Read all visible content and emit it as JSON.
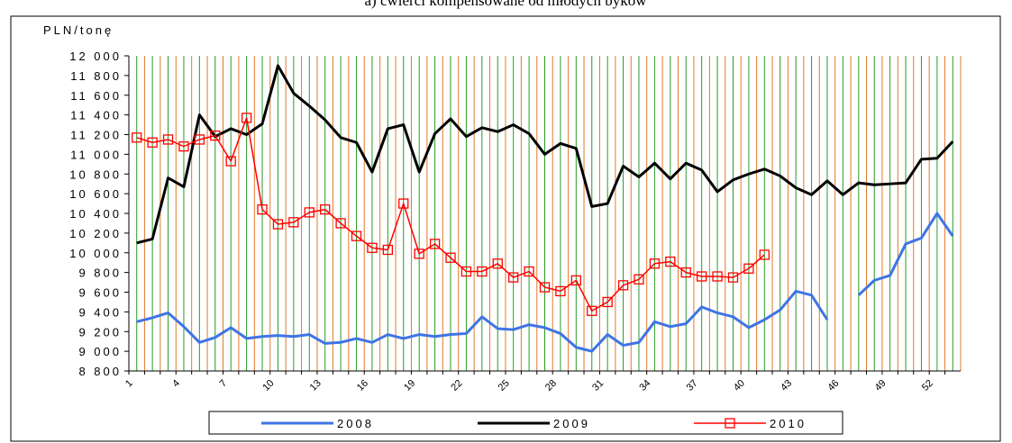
{
  "chart_data": {
    "type": "line",
    "title": "a) ćwierci kompensowane od młodych byków",
    "y_label": "PLN/tonę",
    "categories": [
      "1",
      null,
      null,
      "4",
      null,
      null,
      "7",
      null,
      null,
      "10",
      null,
      null,
      "13",
      null,
      null,
      "16",
      null,
      null,
      "19",
      null,
      null,
      "22",
      null,
      null,
      "25",
      null,
      null,
      "28",
      null,
      null,
      "31",
      null,
      null,
      "34",
      null,
      null,
      "37",
      null,
      null,
      "40",
      null,
      null,
      "43",
      null,
      null,
      "46",
      null,
      null,
      "49",
      null,
      null,
      "52",
      null
    ],
    "series": [
      {
        "name": "2008",
        "color": "#3f74e6",
        "marker": null,
        "values": [
          9300,
          9340,
          9390,
          9250,
          9090,
          9140,
          9240,
          9130,
          9150,
          9160,
          9150,
          9170,
          9080,
          9090,
          9130,
          9090,
          9170,
          9130,
          9170,
          9150,
          9170,
          9180,
          9350,
          9230,
          9220,
          9270,
          9240,
          9180,
          9040,
          9000,
          9170,
          9060,
          9090,
          9300,
          9250,
          9280,
          9450,
          9390,
          9350,
          9240,
          9320,
          9420,
          9610,
          9570,
          9320,
          null,
          9570,
          9720,
          9770,
          10090,
          10150,
          10400,
          10170
        ]
      },
      {
        "name": "2009",
        "color": "#000000",
        "marker": null,
        "values": [
          10100,
          10140,
          10760,
          10670,
          11400,
          11180,
          11260,
          11200,
          11310,
          11900,
          11620,
          11490,
          11350,
          11170,
          11120,
          10820,
          11260,
          11300,
          10820,
          11210,
          11360,
          11180,
          11270,
          11230,
          11300,
          11210,
          11000,
          11110,
          11060,
          10470,
          10500,
          10880,
          10770,
          10910,
          10750,
          10910,
          10840,
          10620,
          10740,
          10800,
          10850,
          10780,
          10660,
          10590,
          10730,
          10590,
          10710,
          10690,
          10700,
          10710,
          10950,
          10960,
          11130
        ]
      },
      {
        "name": "2010",
        "color": "#ff0000",
        "marker": "square",
        "values": [
          11170,
          11120,
          11150,
          11080,
          11150,
          11190,
          10930,
          11370,
          10440,
          10290,
          10310,
          10410,
          10440,
          10300,
          10170,
          10050,
          10030,
          10500,
          9990,
          10090,
          9950,
          9810,
          9810,
          9890,
          9750,
          9810,
          9650,
          9610,
          9720,
          9410,
          9500,
          9670,
          9730,
          9890,
          9910,
          9800,
          9760,
          9760,
          9750,
          9840,
          9980,
          null,
          null,
          null,
          null,
          null,
          null,
          null,
          null,
          null,
          null,
          null,
          null
        ]
      }
    ],
    "ylim": [
      8800,
      12000
    ],
    "yticks": [
      {
        "value": 8800,
        "label": "8 800"
      },
      {
        "value": 9000,
        "label": "9 000"
      },
      {
        "value": 9200,
        "label": "9 200"
      },
      {
        "value": 9400,
        "label": "9 400"
      },
      {
        "value": 9600,
        "label": "9 600"
      },
      {
        "value": 9800,
        "label": "9 800"
      },
      {
        "value": 10000,
        "label": "10 000"
      },
      {
        "value": 10200,
        "label": "10 200"
      },
      {
        "value": 10400,
        "label": "10 400"
      },
      {
        "value": 10600,
        "label": "10 600"
      },
      {
        "value": 10800,
        "label": "10 800"
      },
      {
        "value": 11000,
        "label": "11 000"
      },
      {
        "value": 11200,
        "label": "11 200"
      },
      {
        "value": 11400,
        "label": "11 400"
      },
      {
        "value": 11600,
        "label": "11 600"
      },
      {
        "value": 11800,
        "label": "11 800"
      },
      {
        "value": 12000,
        "label": "12 000"
      }
    ],
    "grid": true,
    "legend": "bottom"
  }
}
